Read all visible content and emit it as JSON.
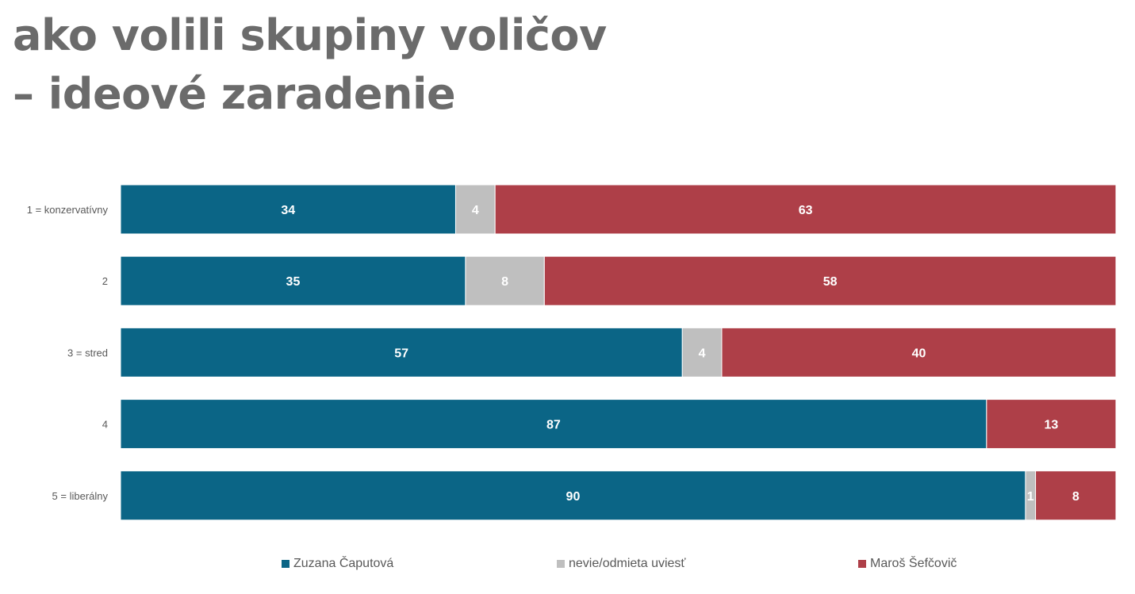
{
  "title": {
    "line1": "ako volili skupiny voličov",
    "line2": "– ideové zaradenie"
  },
  "colors": {
    "caputova": "#0b6586",
    "nevie": "#bfbfbf",
    "sefcovic": "#ae3f48"
  },
  "legend": {
    "caputova": "Zuzana Čaputová",
    "nevie": "nevie/odmieta uviesť",
    "sefcovic": "Maroš Šefčovič"
  },
  "chart_data": {
    "type": "bar",
    "orientation": "horizontal",
    "stacked": true,
    "categories": [
      "1 = konzervatívny",
      "2",
      "3 = stred",
      "4",
      "5 = liberálny"
    ],
    "series": [
      {
        "name": "Zuzana Čaputová",
        "values": [
          34,
          35,
          57,
          87,
          90
        ]
      },
      {
        "name": "nevie/odmieta uviesť",
        "values": [
          4,
          8,
          4,
          0,
          1
        ]
      },
      {
        "name": "Maroš Šefčovič",
        "values": [
          63,
          58,
          40,
          13,
          8
        ]
      }
    ],
    "data_labels": [
      [
        "34",
        "4",
        "63"
      ],
      [
        "35",
        "8",
        "58"
      ],
      [
        "57",
        "4",
        "40"
      ],
      [
        "87",
        "",
        "13"
      ],
      [
        "90",
        "1",
        "8"
      ]
    ],
    "legend_position": "bottom",
    "grid": false
  }
}
